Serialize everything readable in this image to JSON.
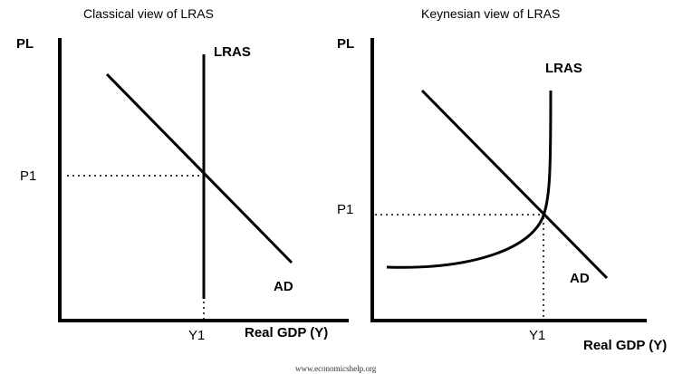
{
  "left_panel": {
    "title": "Classical view of LRAS",
    "y_axis_label": "PL",
    "x_axis_label": "Real GDP (Y)",
    "supply_label": "LRAS",
    "demand_label": "AD",
    "price_tick": "P1",
    "output_tick": "Y1"
  },
  "right_panel": {
    "title": "Keynesian view of LRAS",
    "y_axis_label": "PL",
    "x_axis_label": "Real GDP (Y)",
    "supply_label": "LRAS",
    "demand_label": "AD",
    "price_tick": "P1",
    "output_tick": "Y1"
  },
  "credit": "www.economicshelp.org"
}
